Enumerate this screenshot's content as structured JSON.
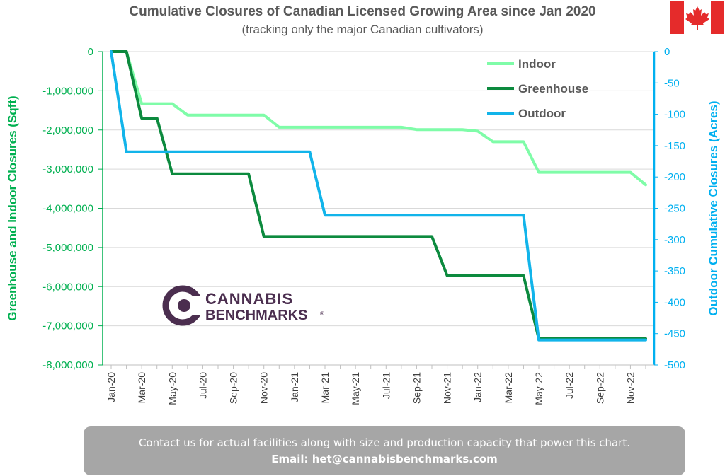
{
  "title": "Cumulative Closures of Canadian Licensed Growing Area since Jan 2020",
  "subtitle": "(tracking only the major Canadian cultivators)",
  "logo": {
    "line1": "CANNABIS",
    "line2": "BENCHMARKS",
    "mark": "®"
  },
  "footer": {
    "line1": "Contact us for actual facilities along with size and production capacity that power this chart.",
    "line2": "Email: het@cannabisbenchmarks.com"
  },
  "flag_icon": "canada-flag-icon",
  "colors": {
    "indoor": "#7ffca8",
    "greenhouse": "#0c8a3e",
    "outdoor": "#12b4ea",
    "left_axis": "#00b050",
    "right_axis": "#00b0f0"
  },
  "chart_data": {
    "type": "line",
    "title": "Cumulative Closures of Canadian Licensed Growing Area since Jan 2020",
    "subtitle": "(tracking only the major Canadian cultivators)",
    "ylabel": "Greenhouse and Indoor Closures (Sqft)",
    "y2label": "Outdoor Cumulative Closures (Acres)",
    "ylim": [
      -8000000,
      0
    ],
    "y2lim": [
      -500,
      0
    ],
    "y_ticks": [
      "0",
      "-1,000,000",
      "-2,000,000",
      "-3,000,000",
      "-4,000,000",
      "-5,000,000",
      "-6,000,000",
      "-7,000,000",
      "-8,000,000"
    ],
    "y2_ticks": [
      "0",
      "-50",
      "-100",
      "-150",
      "-200",
      "-250",
      "-300",
      "-350",
      "-400",
      "-450",
      "-500"
    ],
    "x_tick_labels": [
      "Jan-20",
      "Mar-20",
      "May-20",
      "Jul-20",
      "Sep-20",
      "Nov-20",
      "Jan-21",
      "Mar-21",
      "May-21",
      "Jul-21",
      "Sep-21",
      "Nov-21",
      "Jan-22",
      "Mar-22",
      "May-22",
      "Jul-22",
      "Sep-22",
      "Nov-22"
    ],
    "legend_position": "top-right",
    "grid": true,
    "series": [
      {
        "name": "Indoor",
        "axis": "left",
        "x": [
          "2020-01",
          "2020-02",
          "2020-03",
          "2020-04",
          "2020-05",
          "2020-06",
          "2020-07",
          "2020-08",
          "2020-09",
          "2020-10",
          "2020-11",
          "2020-12",
          "2021-01",
          "2021-02",
          "2021-03",
          "2021-04",
          "2021-05",
          "2021-06",
          "2021-07",
          "2021-08",
          "2021-09",
          "2021-10",
          "2021-11",
          "2021-12",
          "2022-01",
          "2022-02",
          "2022-03",
          "2022-04",
          "2022-05",
          "2022-06",
          "2022-07",
          "2022-08",
          "2022-09",
          "2022-10",
          "2022-11",
          "2022-12"
        ],
        "values": [
          0,
          0,
          -1330000,
          -1330000,
          -1330000,
          -1620000,
          -1620000,
          -1620000,
          -1620000,
          -1620000,
          -1620000,
          -1930000,
          -1930000,
          -1930000,
          -1930000,
          -1930000,
          -1930000,
          -1930000,
          -1930000,
          -1930000,
          -1990000,
          -1990000,
          -1990000,
          -1990000,
          -2030000,
          -2300000,
          -2300000,
          -2300000,
          -3080000,
          -3080000,
          -3080000,
          -3080000,
          -3080000,
          -3080000,
          -3080000,
          -3400000
        ]
      },
      {
        "name": "Greenhouse",
        "axis": "left",
        "x": [
          "2020-01",
          "2020-02",
          "2020-03",
          "2020-04",
          "2020-05",
          "2020-06",
          "2020-07",
          "2020-08",
          "2020-09",
          "2020-10",
          "2020-11",
          "2020-12",
          "2021-01",
          "2021-02",
          "2021-03",
          "2021-04",
          "2021-05",
          "2021-06",
          "2021-07",
          "2021-08",
          "2021-09",
          "2021-10",
          "2021-11",
          "2021-12",
          "2022-01",
          "2022-02",
          "2022-03",
          "2022-04",
          "2022-05",
          "2022-06",
          "2022-07",
          "2022-08",
          "2022-09",
          "2022-10",
          "2022-11",
          "2022-12"
        ],
        "values": [
          0,
          0,
          -1700000,
          -1700000,
          -3120000,
          -3120000,
          -3120000,
          -3120000,
          -3120000,
          -3120000,
          -4720000,
          -4720000,
          -4720000,
          -4720000,
          -4720000,
          -4720000,
          -4720000,
          -4720000,
          -4720000,
          -4720000,
          -4720000,
          -4720000,
          -5720000,
          -5720000,
          -5720000,
          -5720000,
          -5720000,
          -5720000,
          -7330000,
          -7330000,
          -7330000,
          -7330000,
          -7330000,
          -7330000,
          -7330000,
          -7330000
        ]
      },
      {
        "name": "Outdoor",
        "axis": "right",
        "x": [
          "2020-01",
          "2020-02",
          "2020-03",
          "2020-04",
          "2020-05",
          "2020-06",
          "2020-07",
          "2020-08",
          "2020-09",
          "2020-10",
          "2020-11",
          "2020-12",
          "2021-01",
          "2021-02",
          "2021-03",
          "2021-04",
          "2021-05",
          "2021-06",
          "2021-07",
          "2021-08",
          "2021-09",
          "2021-10",
          "2021-11",
          "2021-12",
          "2022-01",
          "2022-02",
          "2022-03",
          "2022-04",
          "2022-05",
          "2022-06",
          "2022-07",
          "2022-08",
          "2022-09",
          "2022-10",
          "2022-11",
          "2022-12"
        ],
        "values": [
          0,
          -160,
          -160,
          -160,
          -160,
          -160,
          -160,
          -160,
          -160,
          -160,
          -160,
          -160,
          -160,
          -160,
          -261,
          -261,
          -261,
          -261,
          -261,
          -261,
          -261,
          -261,
          -261,
          -261,
          -261,
          -261,
          -261,
          -261,
          -460,
          -460,
          -460,
          -460,
          -460,
          -460,
          -460,
          -460
        ]
      }
    ]
  }
}
